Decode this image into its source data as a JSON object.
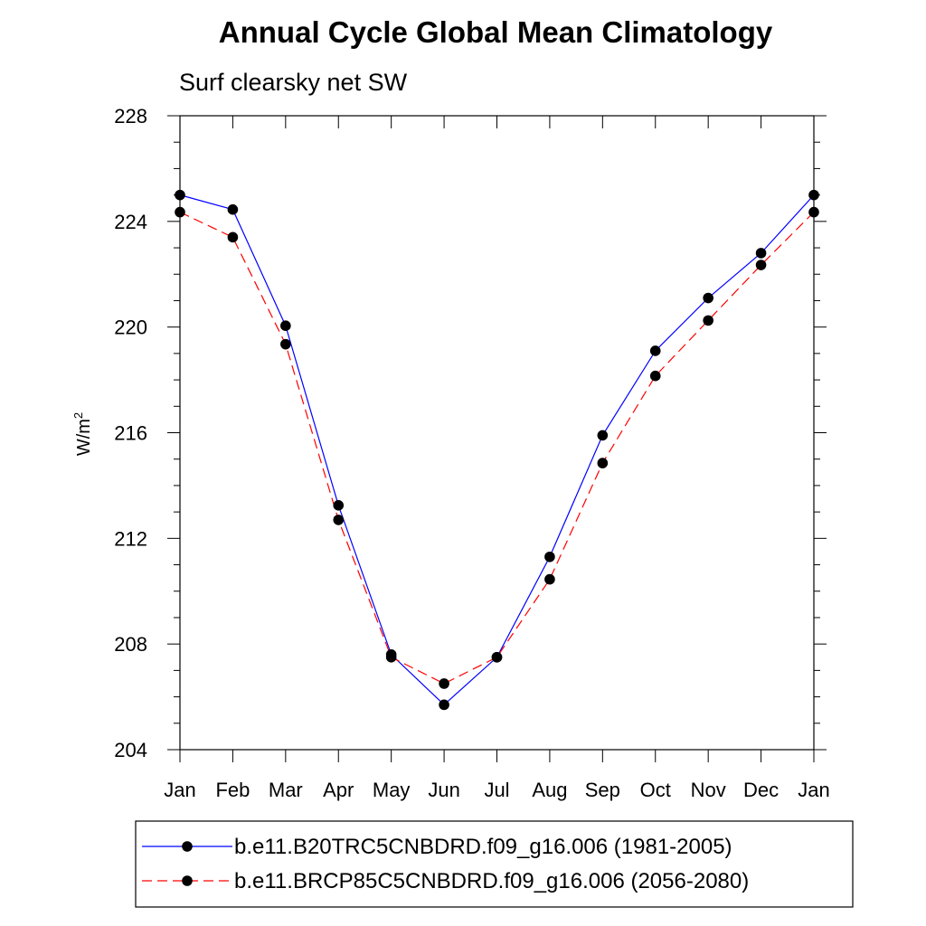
{
  "chart_data": {
    "type": "line",
    "title": "Annual Cycle Global Mean Climatology",
    "subtitle": "Surf clearsky net SW",
    "xlabel": "",
    "ylabel": "W/m",
    "ylabel_sup": "2",
    "categories": [
      "Jan",
      "Feb",
      "Mar",
      "Apr",
      "May",
      "Jun",
      "Jul",
      "Aug",
      "Sep",
      "Oct",
      "Nov",
      "Dec",
      "Jan"
    ],
    "ylim": [
      204,
      228
    ],
    "yticks": [
      204,
      208,
      212,
      216,
      220,
      224,
      228
    ],
    "series": [
      {
        "name": "b.e11.B20TRC5CNBDRD.f09_g16.006 (1981-2005)",
        "color": "#0000ff",
        "dash": "solid",
        "values": [
          225.0,
          224.45,
          220.05,
          213.25,
          207.6,
          205.7,
          207.5,
          211.3,
          215.9,
          219.1,
          221.1,
          222.8,
          225.0
        ]
      },
      {
        "name": "b.e11.BRCP85C5CNBDRD.f09_g16.006 (2056-2080)",
        "color": "#ff0000",
        "dash": "dashed",
        "values": [
          224.35,
          223.4,
          219.35,
          212.7,
          207.5,
          206.5,
          207.5,
          210.45,
          214.85,
          218.15,
          220.25,
          222.35,
          224.35
        ]
      }
    ],
    "legend": "bottom"
  }
}
